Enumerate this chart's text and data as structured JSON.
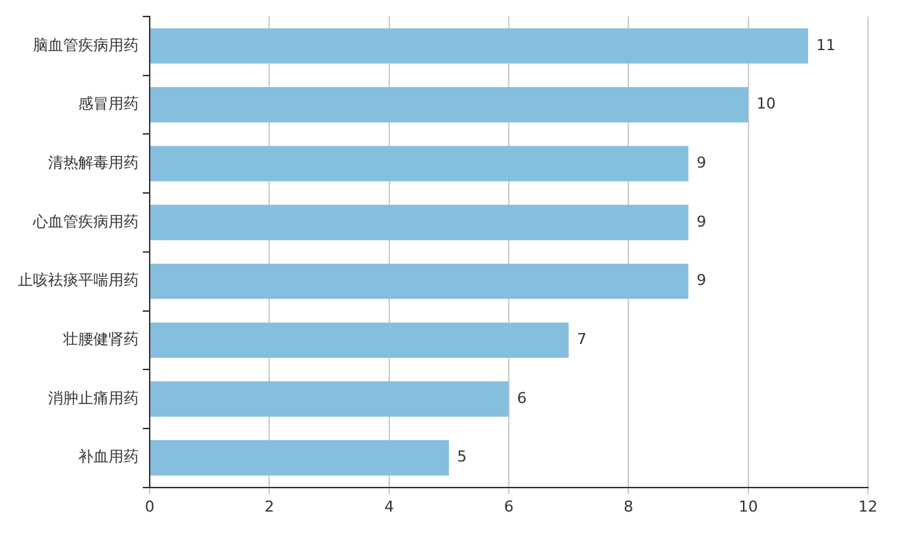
{
  "chart_data": {
    "type": "bar",
    "orientation": "horizontal",
    "categories": [
      "脑血管疾病用药",
      "感冒用药",
      "清热解毒用药",
      "心血管疾病用药",
      "止咳祛痰平喘用药",
      "壮腰健肾药",
      "消肿止痛用药",
      "补血用药"
    ],
    "values": [
      11,
      10,
      9,
      9,
      9,
      7,
      6,
      5
    ],
    "color": "#85bfdd",
    "xlim": [
      0,
      12
    ],
    "xticks": [
      0,
      2,
      4,
      6,
      8,
      10,
      12
    ],
    "grid": "x",
    "data_labels": true
  }
}
